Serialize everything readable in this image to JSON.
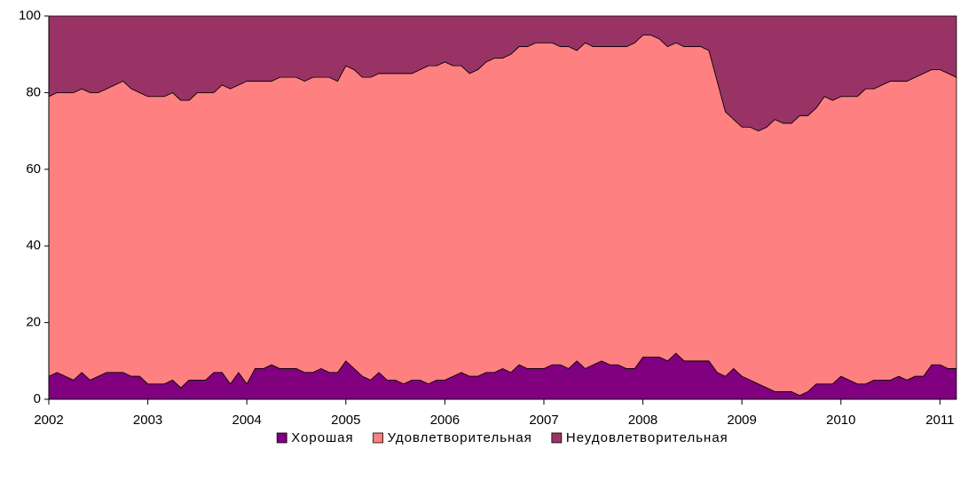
{
  "chart_data": {
    "type": "stacked_area",
    "categories": [
      "2002",
      null,
      null,
      null,
      null,
      null,
      null,
      null,
      null,
      null,
      null,
      null,
      "2003",
      null,
      null,
      null,
      null,
      null,
      null,
      null,
      null,
      null,
      null,
      null,
      "2004",
      null,
      null,
      null,
      null,
      null,
      null,
      null,
      null,
      null,
      null,
      null,
      "2005",
      null,
      null,
      null,
      null,
      null,
      null,
      null,
      null,
      null,
      null,
      null,
      "2006",
      null,
      null,
      null,
      null,
      null,
      null,
      null,
      null,
      null,
      null,
      null,
      "2007",
      null,
      null,
      null,
      null,
      null,
      null,
      null,
      null,
      null,
      null,
      null,
      "2008",
      null,
      null,
      null,
      null,
      null,
      null,
      null,
      null,
      null,
      null,
      null,
      "2009",
      null,
      null,
      null,
      null,
      null,
      null,
      null,
      null,
      null,
      null,
      null,
      "2010",
      null,
      null,
      null,
      null,
      null,
      null,
      null,
      null,
      null,
      null,
      null,
      "2011",
      null,
      null
    ],
    "series": [
      {
        "name": "Хорошая",
        "color": "#800080",
        "values": [
          6,
          7,
          6,
          5,
          7,
          5,
          6,
          7,
          7,
          7,
          6,
          6,
          4,
          4,
          4,
          5,
          3,
          5,
          5,
          5,
          7,
          7,
          4,
          7,
          4,
          8,
          8,
          9,
          8,
          8,
          8,
          7,
          7,
          8,
          7,
          7,
          10,
          8,
          6,
          5,
          7,
          5,
          5,
          4,
          5,
          5,
          4,
          5,
          5,
          6,
          7,
          6,
          6,
          7,
          7,
          8,
          7,
          9,
          8,
          8,
          8,
          9,
          9,
          8,
          10,
          8,
          9,
          10,
          9,
          9,
          8,
          8,
          11,
          11,
          11,
          10,
          12,
          10,
          10,
          10,
          10,
          7,
          6,
          8,
          6,
          5,
          4,
          3,
          2,
          2,
          2,
          1,
          2,
          4,
          4,
          4,
          6,
          5,
          4,
          4,
          5,
          5,
          5,
          6,
          5,
          6,
          6,
          9,
          9,
          8,
          8
        ]
      },
      {
        "name": "Удовлетворительная",
        "color": "#ff8080",
        "values": [
          73,
          73,
          74,
          75,
          74,
          75,
          74,
          74,
          75,
          76,
          75,
          74,
          75,
          75,
          75,
          75,
          75,
          73,
          75,
          75,
          73,
          75,
          77,
          75,
          79,
          75,
          75,
          74,
          76,
          76,
          76,
          76,
          77,
          76,
          77,
          76,
          77,
          78,
          78,
          79,
          78,
          80,
          80,
          81,
          80,
          81,
          83,
          82,
          83,
          81,
          80,
          79,
          80,
          81,
          82,
          81,
          83,
          83,
          84,
          85,
          85,
          84,
          83,
          84,
          81,
          85,
          83,
          82,
          83,
          83,
          84,
          85,
          84,
          84,
          83,
          82,
          81,
          82,
          82,
          82,
          81,
          76,
          69,
          65,
          65,
          66,
          66,
          68,
          71,
          70,
          70,
          73,
          72,
          72,
          75,
          74,
          73,
          74,
          75,
          77,
          76,
          77,
          78,
          77,
          78,
          78,
          79,
          77,
          77,
          77,
          76
        ]
      },
      {
        "name": "Неудовлетворительная",
        "color": "#993366",
        "values": [
          21,
          20,
          20,
          20,
          19,
          20,
          20,
          19,
          18,
          17,
          19,
          20,
          21,
          21,
          21,
          20,
          22,
          22,
          20,
          20,
          20,
          18,
          19,
          18,
          17,
          17,
          17,
          17,
          16,
          16,
          16,
          17,
          16,
          16,
          16,
          17,
          13,
          14,
          16,
          16,
          15,
          15,
          15,
          15,
          15,
          14,
          13,
          13,
          12,
          13,
          13,
          15,
          14,
          12,
          11,
          11,
          10,
          8,
          8,
          7,
          7,
          7,
          8,
          8,
          9,
          7,
          8,
          8,
          8,
          8,
          8,
          7,
          5,
          5,
          6,
          8,
          7,
          8,
          8,
          8,
          9,
          17,
          25,
          27,
          29,
          29,
          30,
          29,
          27,
          28,
          28,
          26,
          26,
          24,
          21,
          22,
          21,
          21,
          21,
          19,
          19,
          18,
          17,
          17,
          17,
          16,
          15,
          14,
          14,
          15,
          16
        ]
      }
    ],
    "ylim": [
      0,
      100
    ],
    "yticks": [
      0,
      20,
      40,
      60,
      80,
      100
    ],
    "legend": "bottom"
  }
}
